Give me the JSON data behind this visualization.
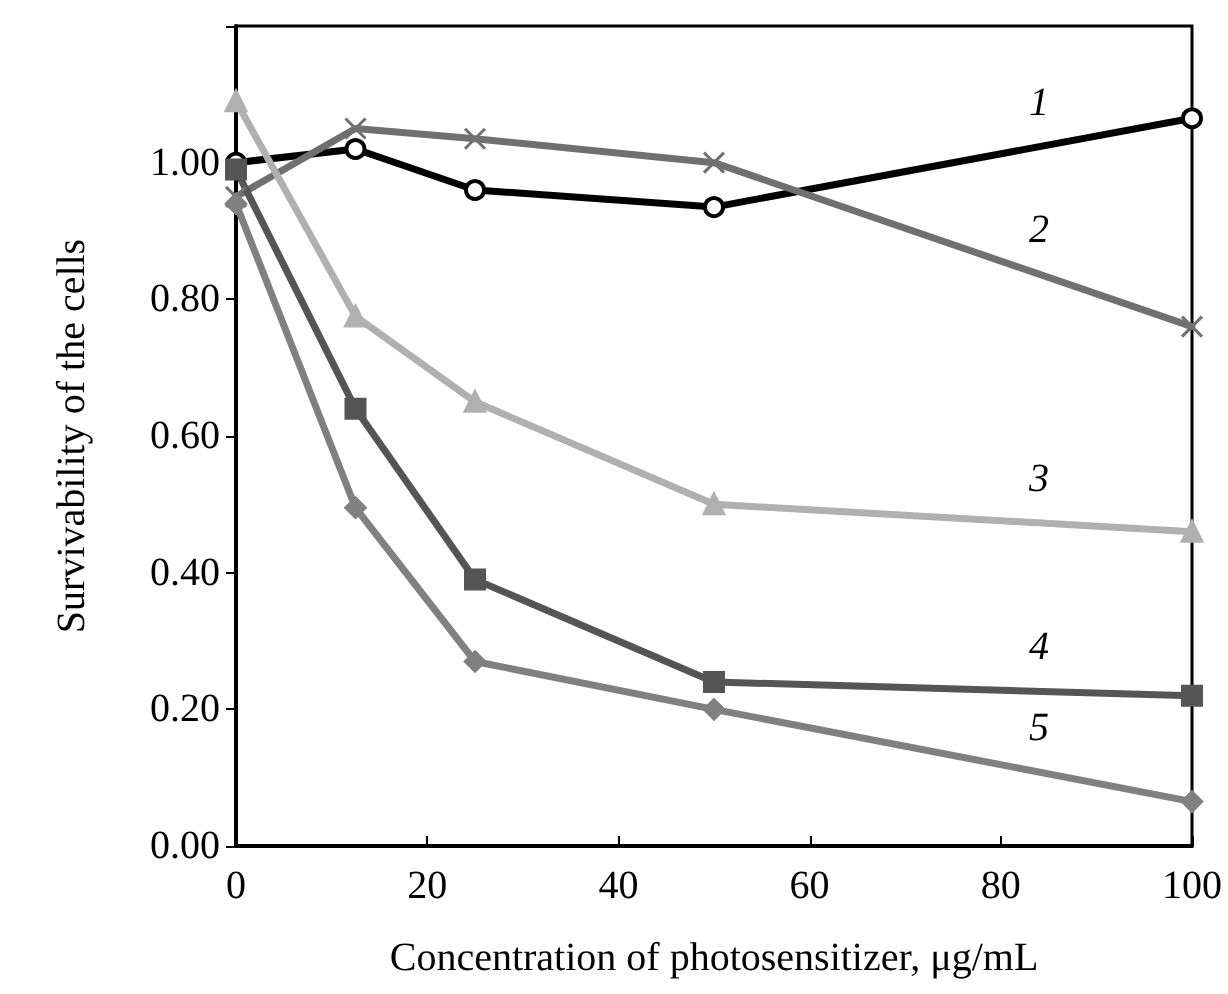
{
  "chart_data": {
    "type": "line",
    "xlabel": "Concentration of photosensitizer, μg/mL",
    "ylabel": "Survivability of the cells",
    "x": [
      0,
      12.5,
      25,
      50,
      100
    ],
    "series": [
      {
        "name": "1",
        "color": "#000000",
        "marker": "circle",
        "values": [
          1.0,
          1.02,
          0.96,
          0.935,
          1.065
        ]
      },
      {
        "name": "2",
        "color": "#707070",
        "marker": "cross",
        "values": [
          0.95,
          1.05,
          1.035,
          1.0,
          0.76
        ]
      },
      {
        "name": "3",
        "color": "#b0b0b0",
        "marker": "triangle",
        "values": [
          1.09,
          0.775,
          0.65,
          0.5,
          0.46
        ]
      },
      {
        "name": "4",
        "color": "#555555",
        "marker": "square",
        "values": [
          0.99,
          0.64,
          0.39,
          0.24,
          0.22
        ]
      },
      {
        "name": "5",
        "color": "#808080",
        "marker": "diamond",
        "values": [
          0.94,
          0.495,
          0.27,
          0.2,
          0.065
        ]
      }
    ],
    "xlim": [
      0,
      100
    ],
    "xticks": [
      0,
      20,
      40,
      60,
      80,
      100
    ],
    "ylim": [
      0,
      1.2
    ],
    "yticks": [
      {
        "value": 0,
        "label": "0.00"
      },
      {
        "value": 0.2,
        "label": "0.20"
      },
      {
        "value": 0.4,
        "label": "0.40"
      },
      {
        "value": 0.6,
        "label": "0.60"
      },
      {
        "value": 0.8,
        "label": "0.80"
      },
      {
        "value": 1.0,
        "label": "1.00"
      },
      {
        "value": 1.2,
        "label": null
      }
    ],
    "grid": false
  }
}
